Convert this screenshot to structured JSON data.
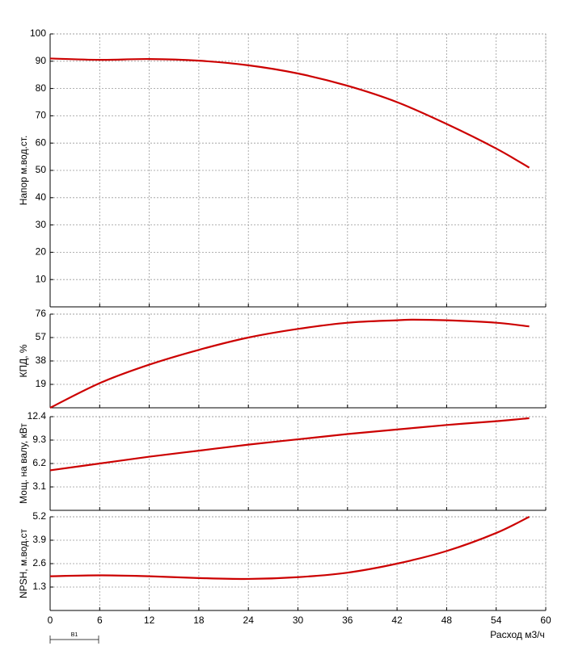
{
  "chart_data": [
    {
      "type": "line",
      "y_label": "Напор м.вод.ст.",
      "color": "#cc0000",
      "grid": true,
      "x": [
        0,
        6,
        12,
        18,
        24,
        30,
        36,
        42,
        48,
        54,
        58
      ],
      "values": [
        91,
        90.5,
        90.8,
        90.2,
        88.5,
        85.5,
        81,
        75,
        67,
        58,
        51
      ],
      "xlim": [
        0,
        60
      ],
      "xticks": [
        0,
        6,
        12,
        18,
        24,
        30,
        36,
        42,
        48,
        54,
        60
      ],
      "ylim": [
        0,
        100
      ],
      "yticks": [
        10,
        20,
        30,
        40,
        50,
        60,
        70,
        80,
        90,
        100
      ]
    },
    {
      "type": "line",
      "y_label": "КПД, %",
      "color": "#cc0000",
      "grid": true,
      "x": [
        0,
        6,
        12,
        18,
        24,
        30,
        36,
        42,
        44,
        48,
        54,
        58
      ],
      "values": [
        0,
        20,
        35,
        47,
        57,
        64,
        69,
        71,
        71.5,
        71,
        69,
        66
      ],
      "xlim": [
        0,
        60
      ],
      "xticks": [
        0,
        6,
        12,
        18,
        24,
        30,
        36,
        42,
        48,
        54,
        60
      ],
      "ylim": [
        0,
        76
      ],
      "yticks": [
        19,
        38,
        57,
        76
      ]
    },
    {
      "type": "line",
      "y_label": "Мощ. на валу, кВт",
      "color": "#cc0000",
      "grid": true,
      "x": [
        0,
        6,
        12,
        18,
        24,
        30,
        36,
        42,
        48,
        54,
        58
      ],
      "values": [
        5.3,
        6.2,
        7.1,
        7.9,
        8.7,
        9.4,
        10.1,
        10.7,
        11.3,
        11.8,
        12.2
      ],
      "xlim": [
        0,
        60
      ],
      "xticks": [
        0,
        6,
        12,
        18,
        24,
        30,
        36,
        42,
        48,
        54,
        60
      ],
      "ylim": [
        0,
        12.4
      ],
      "yticks": [
        3.1,
        6.2,
        9.3,
        12.4
      ]
    },
    {
      "type": "line",
      "y_label": "NPSH, м.вод.ст",
      "x_label": "Расход м3/ч",
      "annotation": "B1",
      "color": "#cc0000",
      "grid": true,
      "x": [
        0,
        6,
        12,
        18,
        24,
        30,
        36,
        42,
        48,
        54,
        58
      ],
      "values": [
        1.9,
        1.95,
        1.9,
        1.8,
        1.75,
        1.85,
        2.1,
        2.6,
        3.3,
        4.3,
        5.2
      ],
      "xlim": [
        0,
        60
      ],
      "xticks": [
        0,
        6,
        12,
        18,
        24,
        30,
        36,
        42,
        48,
        54,
        60
      ],
      "ylim": [
        0,
        5.2
      ],
      "yticks": [
        1.3,
        2.6,
        3.9,
        5.2
      ]
    }
  ]
}
